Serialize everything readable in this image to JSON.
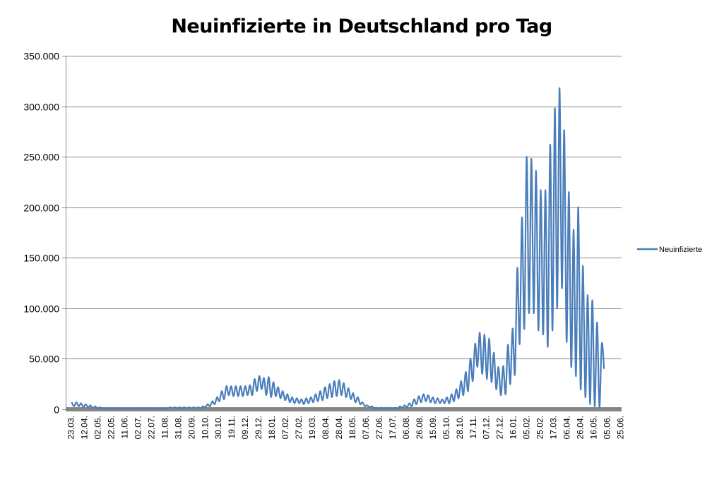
{
  "chart_data": {
    "type": "line",
    "title": "Neuinfizierte in Deutschland pro Tag",
    "xlabel": "",
    "ylabel": "",
    "ylim": [
      0,
      350000
    ],
    "yticks": [
      0,
      50000,
      100000,
      150000,
      200000,
      250000,
      300000,
      350000
    ],
    "ytick_labels": [
      "0",
      "50.000",
      "100.000",
      "150.000",
      "200.000",
      "250.000",
      "300.000",
      "350.000"
    ],
    "grid": true,
    "legend": {
      "position": "right",
      "entries": [
        "Neuinfizierte"
      ]
    },
    "series_color": "#4a7ebb",
    "x_start_date": "23.03.2020",
    "x_tick_interval_days": 20,
    "xtick_labels": [
      "23.03.",
      "12.04.",
      "02.05.",
      "22.05.",
      "11.06.",
      "02.07.",
      "22.07.",
      "11.08.",
      "31.08.",
      "20.09.",
      "10.10.",
      "30.10.",
      "19.11.",
      "09.12.",
      "29.12.",
      "18.01.",
      "07.02.",
      "27.02.",
      "19.03.",
      "08.04.",
      "28.04.",
      "18.05.",
      "07.06.",
      "27.06.",
      "17.07.",
      "06.08.",
      "26.08.",
      "15.09.",
      "05.10.",
      "28.10.",
      "17.11.",
      "07.12.",
      "27.12.",
      "16.01.",
      "05.02.",
      "25.02.",
      "17.03.",
      "06.04.",
      "26.04.",
      "16.05.",
      "05.06.",
      "25.06."
    ],
    "series": [
      {
        "name": "Neuinfizierte",
        "note": "weekly peak and trough values in thousands, one pair per week starting 23.03.2020",
        "weekly_peak_thousands": [
          7,
          7,
          6,
          5,
          4,
          3,
          2,
          1,
          1,
          1,
          1,
          1,
          1,
          1,
          1,
          1,
          1,
          1,
          1,
          1,
          1,
          2,
          2,
          2,
          2,
          2,
          2,
          2,
          3,
          5,
          8,
          12,
          18,
          23,
          23,
          23,
          23,
          23,
          24,
          30,
          33,
          31,
          32,
          27,
          22,
          18,
          15,
          12,
          11,
          10,
          11,
          12,
          15,
          18,
          22,
          25,
          28,
          29,
          26,
          21,
          16,
          12,
          7,
          4,
          3,
          1.5,
          1.5,
          1.5,
          1.5,
          1.5,
          3,
          4,
          6,
          10,
          13,
          15,
          14,
          12,
          11,
          10,
          12,
          15,
          20,
          28,
          37,
          50,
          65,
          76,
          74,
          70,
          56,
          42,
          43,
          64,
          80,
          140,
          190,
          250,
          248,
          236,
          217,
          217,
          262,
          298,
          318,
          276,
          215,
          178,
          200,
          142,
          113,
          108,
          86,
          65
        ],
        "weekly_trough_thousands": [
          3,
          3,
          2,
          2,
          1,
          1,
          1,
          0.5,
          0.5,
          0.5,
          0.5,
          0.5,
          0.5,
          0.5,
          0.5,
          0.5,
          0.5,
          0.5,
          0.5,
          0.5,
          0.5,
          1,
          1,
          1,
          1,
          1,
          1,
          1,
          2,
          3,
          5,
          8,
          10,
          14,
          13,
          13,
          13,
          14,
          14,
          18,
          20,
          14,
          12,
          13,
          11,
          9,
          7,
          6,
          6,
          5,
          6,
          7,
          8,
          9,
          11,
          12,
          13,
          14,
          12,
          10,
          7,
          5,
          3,
          2,
          1,
          0.8,
          0.7,
          0.7,
          0.7,
          0.7,
          1.5,
          2,
          3,
          5,
          7,
          8,
          7,
          6,
          6,
          6,
          6,
          8,
          11,
          14,
          18,
          28,
          42,
          35,
          30,
          27,
          20,
          14,
          15,
          25,
          35,
          65,
          80,
          95,
          95,
          78,
          74,
          62,
          78,
          100,
          120,
          67,
          42,
          33,
          20,
          12,
          5,
          3,
          2,
          40
        ]
      }
    ]
  }
}
